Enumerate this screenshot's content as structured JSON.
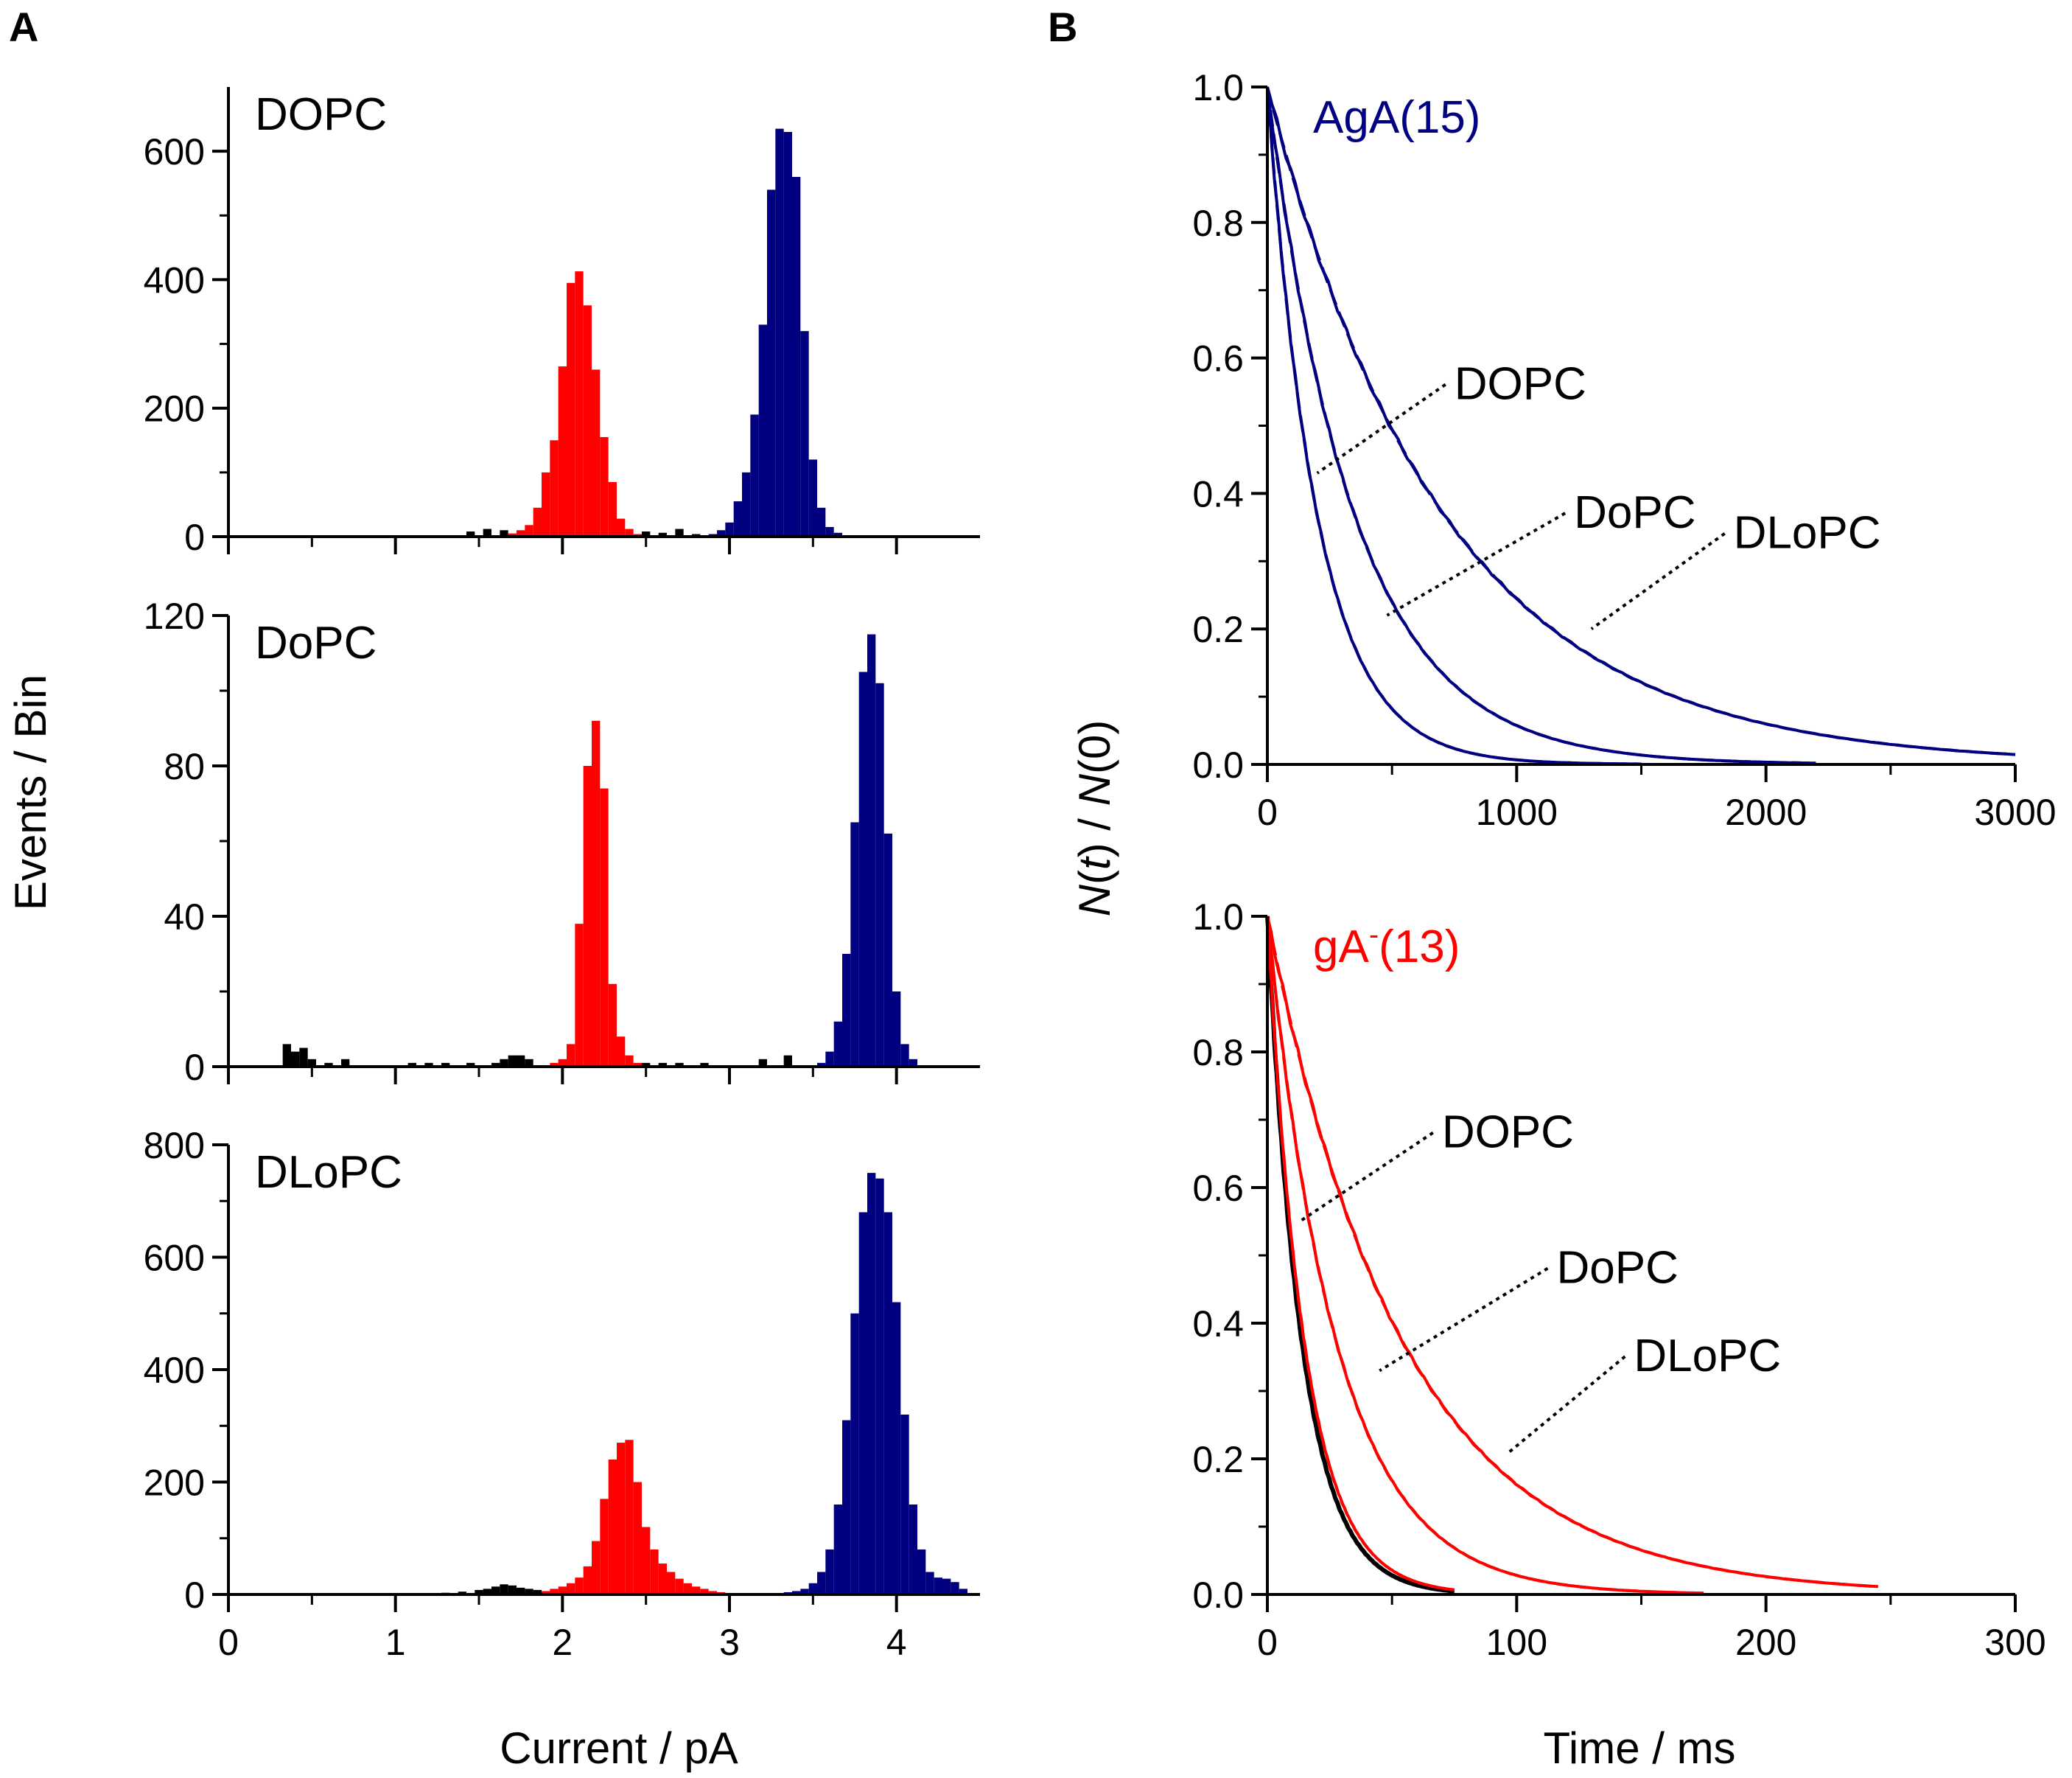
{
  "figure": {
    "panel_a_letter": "A",
    "panel_b_letter": "B",
    "colors": {
      "red": "#ff0000",
      "blue": "#000080",
      "black": "#000000"
    }
  },
  "chart_data": [
    {
      "type": "bar",
      "panel": "A",
      "subplot": "top",
      "title": "DOPC",
      "xlabel": "",
      "ylabel": "Events / Bin",
      "xlim": [
        0,
        4.5
      ],
      "ylim": [
        0,
        700
      ],
      "yticks": [
        0,
        200,
        400,
        600
      ],
      "xticks": [
        0,
        1,
        2,
        3,
        4
      ],
      "show_x_ticklabels": false,
      "series": [
        {
          "name": "background",
          "color": "#000000",
          "x": [
            0.3,
            0.5,
            0.7,
            1.1,
            1.3,
            1.45,
            1.55,
            1.65,
            1.75,
            2.5,
            2.6,
            2.7,
            2.8
          ],
          "values": [
            1,
            1,
            2,
            2,
            2,
            8,
            12,
            10,
            8,
            8,
            6,
            12,
            4
          ]
        },
        {
          "name": "gA^-(13)",
          "color": "#ff0000",
          "x": [
            1.6,
            1.65,
            1.7,
            1.75,
            1.8,
            1.85,
            1.9,
            1.95,
            2.0,
            2.05,
            2.1,
            2.15,
            2.2,
            2.25,
            2.3,
            2.35,
            2.4,
            2.45,
            2.5,
            2.55
          ],
          "values": [
            0,
            2,
            5,
            10,
            18,
            45,
            100,
            150,
            265,
            395,
            413,
            360,
            260,
            155,
            85,
            28,
            12,
            4,
            2,
            0
          ]
        },
        {
          "name": "AgA(15)",
          "color": "#000080",
          "x": [
            2.85,
            2.9,
            2.95,
            3.0,
            3.05,
            3.1,
            3.15,
            3.2,
            3.25,
            3.3,
            3.35,
            3.4,
            3.45,
            3.5,
            3.55,
            3.6,
            3.65,
            3.7
          ],
          "values": [
            2,
            4,
            10,
            22,
            55,
            100,
            190,
            330,
            540,
            635,
            630,
            560,
            320,
            120,
            45,
            15,
            6,
            2
          ]
        }
      ]
    },
    {
      "type": "bar",
      "panel": "A",
      "subplot": "middle",
      "title": "DoPC",
      "xlabel": "",
      "ylabel": "Events / Bin",
      "xlim": [
        0,
        4.5
      ],
      "ylim": [
        0,
        120
      ],
      "yticks": [
        0,
        40,
        80,
        120
      ],
      "xticks": [
        0,
        1,
        2,
        3,
        4
      ],
      "show_x_ticklabels": false,
      "series": [
        {
          "name": "background",
          "color": "#000000",
          "x": [
            0.35,
            0.4,
            0.45,
            0.5,
            0.6,
            0.7,
            1.1,
            1.2,
            1.3,
            1.45,
            1.6,
            1.65,
            1.7,
            1.75,
            1.8,
            2.5,
            2.6,
            2.7,
            2.85,
            3.2,
            3.35
          ],
          "values": [
            6,
            4,
            5,
            2,
            1,
            2,
            1,
            1,
            1,
            1,
            1,
            2,
            3,
            3,
            2,
            1,
            1,
            1,
            1,
            2,
            3
          ]
        },
        {
          "name": "gA^-(13)",
          "color": "#ff0000",
          "x": [
            1.95,
            2.0,
            2.05,
            2.1,
            2.15,
            2.2,
            2.25,
            2.3,
            2.35,
            2.4,
            2.45
          ],
          "values": [
            1,
            2,
            6,
            38,
            80,
            92,
            74,
            22,
            8,
            3,
            1
          ]
        },
        {
          "name": "AgA(15)",
          "color": "#000080",
          "x": [
            3.55,
            3.6,
            3.65,
            3.7,
            3.75,
            3.8,
            3.85,
            3.9,
            3.95,
            4.0,
            4.05,
            4.1
          ],
          "values": [
            1,
            4,
            12,
            30,
            65,
            105,
            115,
            102,
            62,
            20,
            6,
            2
          ]
        }
      ]
    },
    {
      "type": "bar",
      "panel": "A",
      "subplot": "bottom",
      "title": "DLoPC",
      "xlabel": "Current / pA",
      "ylabel": "Events / Bin",
      "xlim": [
        0,
        4.5
      ],
      "ylim": [
        0,
        800
      ],
      "yticks": [
        0,
        200,
        400,
        600,
        800
      ],
      "xticks": [
        0,
        1,
        2,
        3,
        4
      ],
      "show_x_ticklabels": true,
      "series": [
        {
          "name": "background",
          "color": "#000000",
          "x": [
            0.3,
            0.5,
            0.7,
            0.9,
            1.1,
            1.3,
            1.4,
            1.5,
            1.55,
            1.6,
            1.65,
            1.7,
            1.75,
            1.8,
            1.85,
            1.9
          ],
          "values": [
            2,
            2,
            1,
            2,
            2,
            3,
            5,
            8,
            10,
            14,
            18,
            16,
            12,
            10,
            8,
            5
          ]
        },
        {
          "name": "gA^-(13)",
          "color": "#ff0000",
          "x": [
            1.9,
            1.95,
            2.0,
            2.05,
            2.1,
            2.15,
            2.2,
            2.25,
            2.3,
            2.35,
            2.4,
            2.45,
            2.5,
            2.55,
            2.6,
            2.65,
            2.7,
            2.75,
            2.8,
            2.85,
            2.9,
            2.95
          ],
          "values": [
            6,
            10,
            14,
            20,
            30,
            50,
            95,
            170,
            240,
            270,
            275,
            200,
            120,
            80,
            55,
            40,
            28,
            20,
            14,
            10,
            6,
            4
          ]
        },
        {
          "name": "AgA(15)",
          "color": "#000080",
          "x": [
            3.35,
            3.4,
            3.45,
            3.5,
            3.55,
            3.6,
            3.65,
            3.7,
            3.75,
            3.8,
            3.85,
            3.9,
            3.95,
            4.0,
            4.05,
            4.1,
            4.15,
            4.2,
            4.25,
            4.3,
            4.35,
            4.4
          ],
          "values": [
            4,
            6,
            10,
            20,
            40,
            80,
            160,
            310,
            500,
            680,
            750,
            740,
            680,
            520,
            320,
            160,
            80,
            40,
            30,
            28,
            22,
            10
          ]
        }
      ]
    },
    {
      "type": "line",
      "panel": "B",
      "subplot": "top",
      "title": "AgA(15)",
      "title_color": "#000080",
      "xlabel": "",
      "ylabel": "N(t) / N(0)",
      "xlim": [
        0,
        3000
      ],
      "ylim": [
        0,
        1.0
      ],
      "xticks": [
        0,
        1000,
        2000,
        3000
      ],
      "yticks": [
        0.0,
        0.2,
        0.4,
        0.6,
        0.8,
        1.0
      ],
      "ytick_labels": [
        "0.0",
        "0.2",
        "0.4",
        "0.6",
        "0.8",
        "1.0"
      ],
      "color": "#000080",
      "series": [
        {
          "name": "DOPC",
          "tau": 200,
          "x_max": 1500
        },
        {
          "name": "DoPC",
          "tau": 350,
          "x_max": 2200
        },
        {
          "name": "DLoPC",
          "tau": 710,
          "x_max": 3000
        }
      ],
      "annotations": [
        {
          "text": "DOPC",
          "label_at": [
            750,
            0.55
          ],
          "point_at": [
            200,
            0.43
          ]
        },
        {
          "text": "DoPC",
          "label_at": [
            1230,
            0.36
          ],
          "point_at": [
            480,
            0.22
          ]
        },
        {
          "text": "DLoPC",
          "label_at": [
            1870,
            0.33
          ],
          "point_at": [
            1300,
            0.2
          ]
        }
      ]
    },
    {
      "type": "line",
      "panel": "B",
      "subplot": "bottom",
      "title_base": "gA",
      "title_sup": "-",
      "title_tail": "(13)",
      "title_color": "#ff0000",
      "xlabel": "Time / ms",
      "ylabel": "N(t) / N(0)",
      "xlim": [
        0,
        300
      ],
      "ylim": [
        0,
        1.0
      ],
      "xticks": [
        0,
        100,
        200,
        300
      ],
      "yticks": [
        0.0,
        0.2,
        0.4,
        0.6,
        0.8,
        1.0
      ],
      "ytick_labels": [
        "0.0",
        "0.2",
        "0.4",
        "0.6",
        "0.8",
        "1.0"
      ],
      "color": "#ff0000",
      "series": [
        {
          "name": "black",
          "color": "#000000",
          "tau": 14,
          "x_max": 75
        },
        {
          "name": "DOPC",
          "color": "#ff0000",
          "tau": 15,
          "x_max": 75
        },
        {
          "name": "DoPC",
          "color": "#ff0000",
          "tau": 28,
          "x_max": 175
        },
        {
          "name": "DLoPC",
          "color": "#ff0000",
          "tau": 55,
          "x_max": 245
        }
      ],
      "annotations": [
        {
          "text": "DOPC",
          "label_at": [
            70,
            0.67
          ],
          "point_at": [
            13,
            0.55
          ]
        },
        {
          "text": "DoPC",
          "label_at": [
            116,
            0.47
          ],
          "point_at": [
            45,
            0.33
          ]
        },
        {
          "text": "DLoPC",
          "label_at": [
            147,
            0.34
          ],
          "point_at": [
            97,
            0.21
          ]
        }
      ]
    }
  ]
}
